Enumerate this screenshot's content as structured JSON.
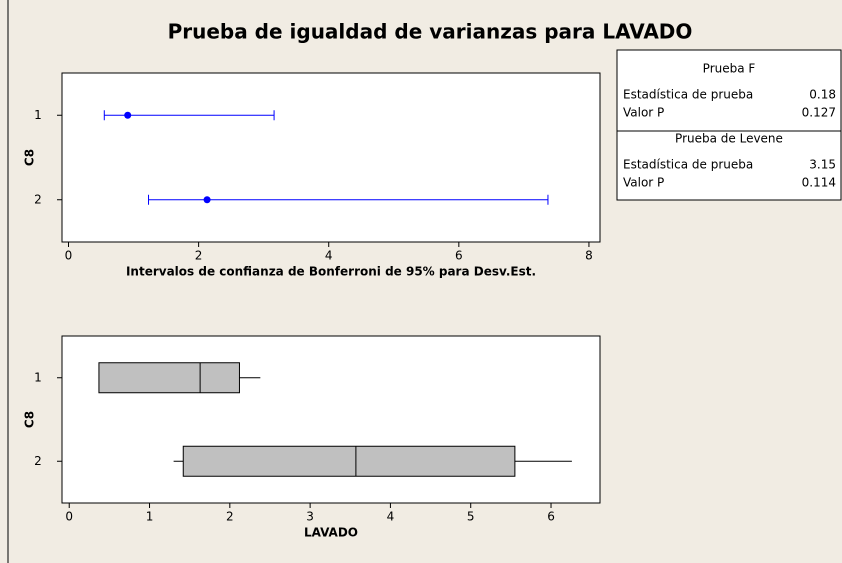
{
  "title": "Prueba de igualdad de varianzas para LAVADO",
  "chart_data": [
    {
      "type": "interval",
      "categories": [
        "1",
        "2"
      ],
      "ylabel": "C8",
      "xlabel": "Intervalos de confianza de Bonferroni de 95% para Desv.Est.",
      "xlim": [
        -0.1,
        8.17
      ],
      "xticks": [
        0,
        2,
        4,
        6,
        8
      ],
      "color": "#0000ff",
      "values": [
        0.91,
        2.13
      ],
      "lower": [
        0.55,
        1.23
      ],
      "upper": [
        3.16,
        7.37
      ]
    },
    {
      "type": "box",
      "categories": [
        "1",
        "2"
      ],
      "ylabel": "C8",
      "xlabel": "LAVADO",
      "xlim": [
        -0.09,
        6.61
      ],
      "xticks": [
        0,
        1,
        2,
        3,
        4,
        5,
        6
      ],
      "color": "#c0c0c0",
      "min": [
        0.37,
        1.3
      ],
      "q1": [
        0.37,
        1.42
      ],
      "median": [
        1.63,
        3.57
      ],
      "q3": [
        2.12,
        5.55
      ],
      "max": [
        2.38,
        6.26
      ]
    }
  ],
  "stats": [
    {
      "heading": "Prueba F",
      "rows": [
        [
          "Estadística de prueba",
          "0.18"
        ],
        [
          "Valor P",
          "0.127"
        ]
      ]
    },
    {
      "heading": "Prueba de Levene",
      "rows": [
        [
          "Estadística de prueba",
          "3.15"
        ],
        [
          "Valor P",
          "0.114"
        ]
      ]
    }
  ]
}
